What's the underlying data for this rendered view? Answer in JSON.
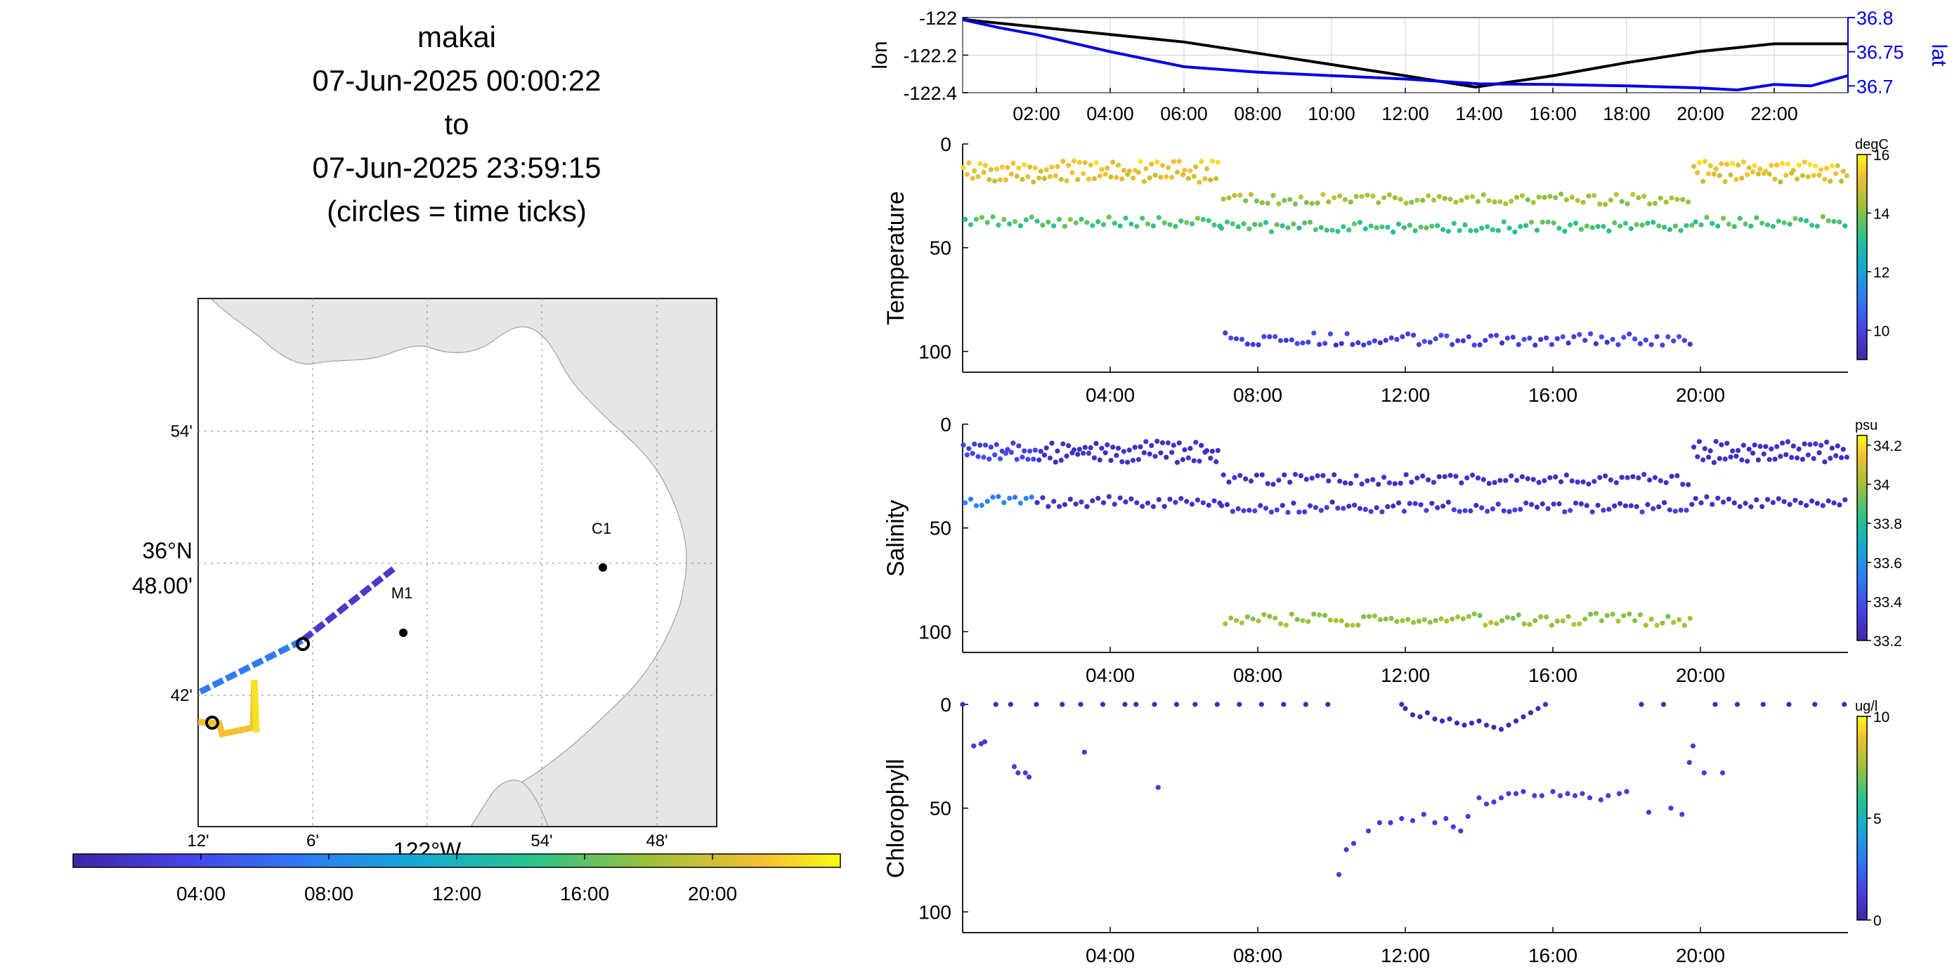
{
  "title": {
    "vehicle": "makai",
    "start": "07-Jun-2025 00:00:22",
    "to": "to",
    "end": "07-Jun-2025 23:59:15",
    "note": "(circles = time ticks)"
  },
  "colors": {
    "map_land": "#e6e6e6",
    "lon_line": "#000000",
    "lat_line": "#0000e6",
    "parula_low": "#3e26a8",
    "parula_high": "#f9fb15"
  },
  "map": {
    "lat_ticks": [
      "54'",
      "36°N\n48.00'",
      "42'"
    ],
    "lat_label_main": "36°N",
    "lat_label_sub": "48.00'",
    "lat_label_54": "54'",
    "lat_label_42": "42'",
    "lon_ticks": [
      "12'",
      "6'",
      "122°W",
      "54'",
      "48'"
    ],
    "lon_label_12": "12'",
    "lon_label_6": "6'",
    "lon_label_deg": "122°W",
    "lon_label_54": "54'",
    "lon_label_48": "48'",
    "stations": [
      {
        "name": "C1"
      },
      {
        "name": "M1"
      }
    ],
    "timebar_ticks": [
      "04:00",
      "08:00",
      "12:00",
      "16:00",
      "20:00"
    ]
  },
  "chart_data": [
    {
      "type": "line",
      "ylabel_left": "lon",
      "ylabel_right": "lat",
      "left_ticks": [
        "-122",
        "-122.2",
        "-122.4"
      ],
      "right_ticks": [
        "36.8",
        "36.75",
        "36.7"
      ],
      "ylim_left": [
        -122.4,
        -122.0
      ],
      "ylim_right": [
        36.69,
        36.8
      ],
      "x_ticks": [
        "02:00",
        "04:00",
        "06:00",
        "08:00",
        "10:00",
        "12:00",
        "14:00",
        "16:00",
        "18:00",
        "20:00",
        "22:00"
      ],
      "x_note": "Jun 07, 2025",
      "grid": true,
      "series": [
        {
          "name": "lon",
          "x": [
            0,
            2,
            4,
            6,
            8,
            10,
            12,
            13.9,
            16,
            18,
            20,
            22,
            24
          ],
          "values": [
            -122.01,
            -122.05,
            -122.09,
            -122.13,
            -122.19,
            -122.25,
            -122.31,
            -122.37,
            -122.31,
            -122.24,
            -122.18,
            -122.14,
            -122.14
          ]
        },
        {
          "name": "lat",
          "x": [
            0,
            1,
            2,
            4,
            6,
            8,
            10,
            12,
            14,
            16,
            18,
            20,
            21,
            22,
            23,
            24
          ],
          "values": [
            36.797,
            36.785,
            36.775,
            36.75,
            36.728,
            36.72,
            36.715,
            36.71,
            36.703,
            36.702,
            36.7,
            36.697,
            36.694,
            36.702,
            36.7,
            36.715
          ]
        }
      ]
    },
    {
      "type": "scatter",
      "ylabel": "Temperature",
      "unit": "degC",
      "ylim": [
        0,
        110
      ],
      "yticks": [
        "0",
        "50",
        "100"
      ],
      "cbar_ticks": [
        "16",
        "14",
        "12",
        "10"
      ],
      "crange": [
        9,
        16
      ],
      "x_ticks": [
        "04:00",
        "08:00",
        "12:00",
        "16:00",
        "20:00"
      ],
      "profile_depths": [
        2,
        10,
        18,
        26,
        34,
        40,
        48,
        60,
        72,
        84,
        96
      ],
      "depth_profile": [
        [
          0,
          7,
          40
        ],
        [
          7,
          19.8,
          100
        ],
        [
          19.8,
          24,
          40
        ]
      ],
      "value_model": "temp decreasing with depth, ~16 at surface to ~9.5 at 100 m"
    },
    {
      "type": "scatter",
      "ylabel": "Salinity",
      "unit": "psu",
      "ylim": [
        0,
        110
      ],
      "yticks": [
        "0",
        "50",
        "100"
      ],
      "cbar_ticks": [
        "34.2",
        "34",
        "33.8",
        "33.6",
        "33.4",
        "33.2"
      ],
      "crange": [
        33.2,
        34.25
      ],
      "x_ticks": [
        "04:00",
        "08:00",
        "12:00",
        "16:00",
        "20:00"
      ],
      "value_model": "salinity ~33.2 near surface, rising to ~34.0 at 100 m"
    },
    {
      "type": "scatter",
      "ylabel": "Chlorophyll",
      "unit": "ug/l",
      "ylim": [
        0,
        110
      ],
      "yticks": [
        "0",
        "50",
        "100"
      ],
      "cbar_ticks": [
        "10",
        "5",
        "0"
      ],
      "crange": [
        0,
        10
      ],
      "x_ticks": [
        "04:00",
        "08:00",
        "12:00",
        "16:00",
        "20:00"
      ],
      "points": [
        [
          0.0,
          0
        ],
        [
          0.3,
          20
        ],
        [
          0.5,
          19
        ],
        [
          0.6,
          18
        ],
        [
          0.9,
          0
        ],
        [
          1.3,
          0
        ],
        [
          1.4,
          30
        ],
        [
          1.5,
          33
        ],
        [
          1.7,
          33
        ],
        [
          1.8,
          35
        ],
        [
          2.0,
          0
        ],
        [
          2.7,
          0
        ],
        [
          3.2,
          0
        ],
        [
          3.3,
          23
        ],
        [
          3.8,
          0
        ],
        [
          4.4,
          0
        ],
        [
          4.7,
          0
        ],
        [
          5.2,
          0
        ],
        [
          5.3,
          40
        ],
        [
          5.8,
          0
        ],
        [
          6.3,
          0
        ],
        [
          6.9,
          0
        ],
        [
          7.5,
          0
        ],
        [
          8.1,
          0
        ],
        [
          8.7,
          0
        ],
        [
          9.3,
          0
        ],
        [
          9.9,
          0
        ],
        [
          10.2,
          82
        ],
        [
          10.4,
          70
        ],
        [
          10.6,
          67
        ],
        [
          11.0,
          61
        ],
        [
          11.3,
          57
        ],
        [
          11.6,
          57
        ],
        [
          11.9,
          55
        ],
        [
          11.9,
          0
        ],
        [
          12.0,
          2
        ],
        [
          12.2,
          5
        ],
        [
          12.4,
          6
        ],
        [
          12.6,
          4
        ],
        [
          12.8,
          7
        ],
        [
          13.0,
          8
        ],
        [
          13.2,
          7
        ],
        [
          13.4,
          9
        ],
        [
          13.6,
          10
        ],
        [
          13.8,
          9
        ],
        [
          14.0,
          8
        ],
        [
          14.2,
          10
        ],
        [
          14.4,
          11
        ],
        [
          14.6,
          12
        ],
        [
          14.8,
          10
        ],
        [
          15.0,
          8
        ],
        [
          15.2,
          6
        ],
        [
          15.4,
          4
        ],
        [
          15.6,
          2
        ],
        [
          15.8,
          0
        ],
        [
          12.2,
          56
        ],
        [
          12.5,
          53
        ],
        [
          12.8,
          57
        ],
        [
          13.1,
          55
        ],
        [
          13.3,
          59
        ],
        [
          13.5,
          61
        ],
        [
          13.7,
          54
        ],
        [
          14.0,
          45
        ],
        [
          14.2,
          48
        ],
        [
          14.4,
          47
        ],
        [
          14.6,
          45
        ],
        [
          14.8,
          43
        ],
        [
          15.0,
          43
        ],
        [
          15.2,
          42
        ],
        [
          15.5,
          44
        ],
        [
          15.7,
          44
        ],
        [
          16.0,
          42
        ],
        [
          16.2,
          44
        ],
        [
          16.4,
          43
        ],
        [
          16.6,
          44
        ],
        [
          16.8,
          43
        ],
        [
          17.0,
          45
        ],
        [
          17.3,
          46
        ],
        [
          17.5,
          44
        ],
        [
          17.8,
          43
        ],
        [
          18.0,
          42
        ],
        [
          18.4,
          0
        ],
        [
          18.6,
          52
        ],
        [
          19.0,
          0
        ],
        [
          19.2,
          50
        ],
        [
          19.5,
          53
        ],
        [
          19.7,
          28
        ],
        [
          19.8,
          20
        ],
        [
          20.1,
          33
        ],
        [
          20.4,
          0
        ],
        [
          20.6,
          33
        ],
        [
          21.0,
          0
        ],
        [
          21.7,
          0
        ],
        [
          22.4,
          0
        ],
        [
          23.1,
          0
        ],
        [
          23.9,
          0
        ]
      ]
    }
  ]
}
